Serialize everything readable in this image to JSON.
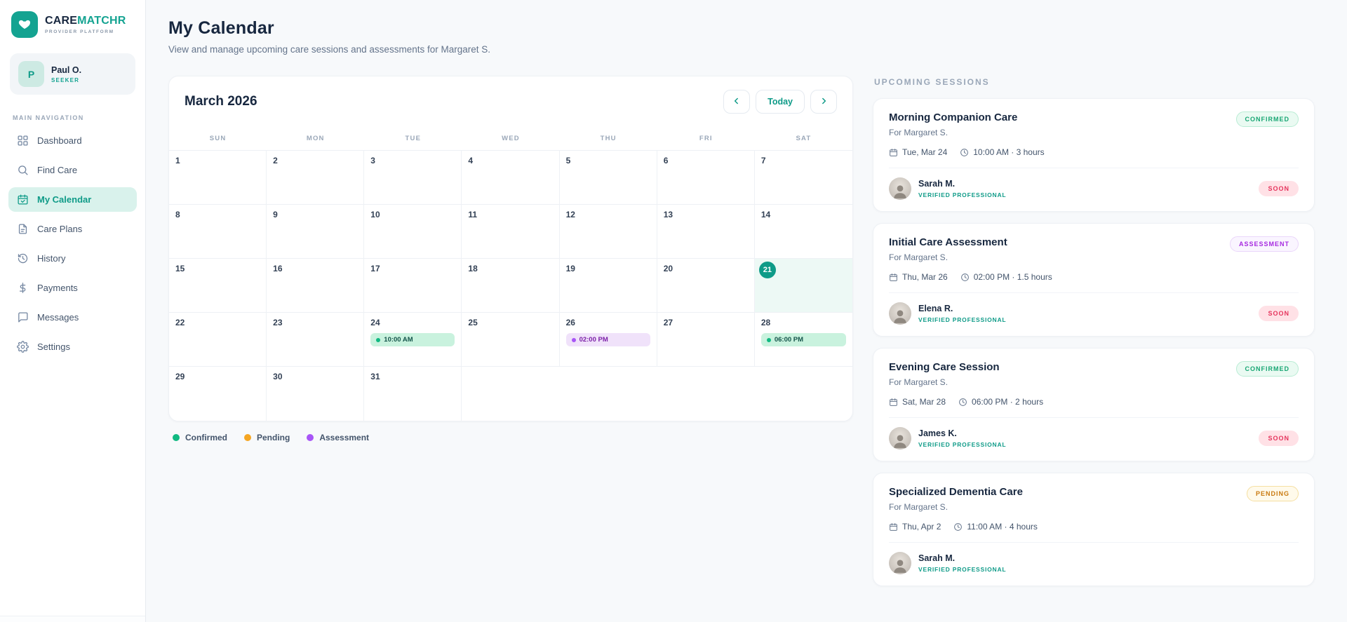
{
  "brand": {
    "name_primary": "CARE",
    "name_secondary": "MATCHR",
    "tagline": "PROVIDER PLATFORM"
  },
  "user": {
    "initial": "P",
    "name": "Paul O.",
    "role": "SEEKER"
  },
  "sidebar": {
    "section_label": "MAIN NAVIGATION",
    "items": [
      {
        "label": "Dashboard",
        "icon": "dashboard-icon",
        "active": false
      },
      {
        "label": "Find Care",
        "icon": "search-icon",
        "active": false
      },
      {
        "label": "My Calendar",
        "icon": "calendar-icon",
        "active": true
      },
      {
        "label": "Care Plans",
        "icon": "document-icon",
        "active": false
      },
      {
        "label": "History",
        "icon": "history-icon",
        "active": false
      },
      {
        "label": "Payments",
        "icon": "dollar-icon",
        "active": false
      },
      {
        "label": "Messages",
        "icon": "message-icon",
        "active": false
      },
      {
        "label": "Settings",
        "icon": "gear-icon",
        "active": false
      }
    ]
  },
  "page": {
    "title": "My Calendar",
    "subtitle": "View and manage upcoming care sessions and assessments for Margaret S."
  },
  "calendar": {
    "month_label": "March 2026",
    "prev_button": "chevron-left-icon",
    "today_button_label": "Today",
    "next_button": "chevron-right-icon",
    "day_headers": [
      "SUN",
      "MON",
      "TUE",
      "WED",
      "THU",
      "FRI",
      "SAT"
    ],
    "days_in_month": 31,
    "weeks_rows": 5,
    "today_day": 21,
    "events": [
      {
        "day": 24,
        "time": "10:00 AM",
        "type": "confirmed"
      },
      {
        "day": 26,
        "time": "02:00 PM",
        "type": "assessment"
      },
      {
        "day": 28,
        "time": "06:00 PM",
        "type": "confirmed"
      }
    ],
    "legend": [
      {
        "label": "Confirmed",
        "color": "#10b981"
      },
      {
        "label": "Pending",
        "color": "#f5a623"
      },
      {
        "label": "Assessment",
        "color": "#a855f7"
      }
    ]
  },
  "sessions": {
    "heading": "UPCOMING SESSIONS",
    "cards": [
      {
        "title": "Morning Companion Care",
        "for_text": "For Margaret S.",
        "badge": "CONFIRMED",
        "badge_type": "confirmed",
        "date": "Tue, Mar 24",
        "time": "10:00 AM · 3 hours",
        "pro_name": "Sarah M.",
        "pro_role": "VERIFIED PROFESSIONAL",
        "soon_badge": "SOON"
      },
      {
        "title": "Initial Care Assessment",
        "for_text": "For Margaret S.",
        "badge": "ASSESSMENT",
        "badge_type": "assessment",
        "date": "Thu, Mar 26",
        "time": "02:00 PM · 1.5 hours",
        "pro_name": "Elena R.",
        "pro_role": "VERIFIED PROFESSIONAL",
        "soon_badge": "SOON"
      },
      {
        "title": "Evening Care Session",
        "for_text": "For Margaret S.",
        "badge": "CONFIRMED",
        "badge_type": "confirmed",
        "date": "Sat, Mar 28",
        "time": "06:00 PM · 2 hours",
        "pro_name": "James K.",
        "pro_role": "VERIFIED PROFESSIONAL",
        "soon_badge": "SOON"
      },
      {
        "title": "Specialized Dementia Care",
        "for_text": "For Margaret S.",
        "badge": "PENDING",
        "badge_type": "pending",
        "date": "Thu, Apr 2",
        "time": "11:00 AM · 4 hours",
        "pro_name": "Sarah M.",
        "pro_role": "VERIFIED PROFESSIONAL",
        "soon_badge": null
      }
    ]
  }
}
